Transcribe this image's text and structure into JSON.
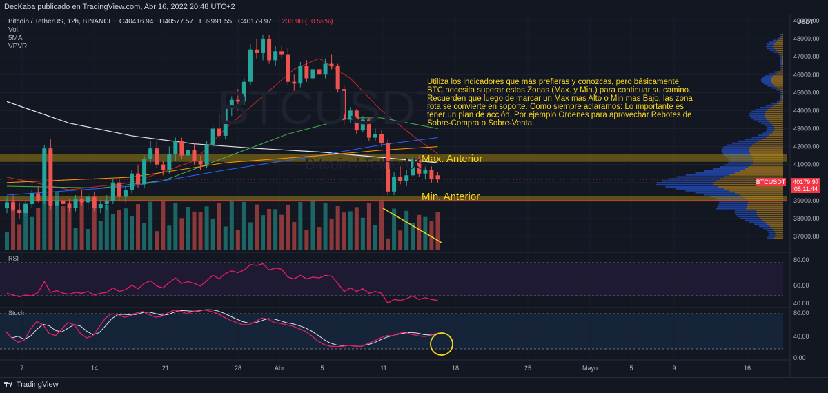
{
  "header": {
    "publisher": "DecKaba publicado en TradingView.com, Abr 16, 2022 20:48 UTC+2"
  },
  "legend": {
    "symbol": "Bitcoin / TetherUS, 12h, BINANCE",
    "open": "O40416.94",
    "high": "H40577.57",
    "low": "L39991.55",
    "close": "C40179.97",
    "change": "−236.98 (−0.59%)",
    "rows": [
      "Vol.",
      "5MA",
      "VPVR"
    ]
  },
  "annotation": "Utiliza los indicadores que más prefieras y conozcas, pero básicamente BTC necesita superar estas Zonas (Max. y Min.) para continuar su camino. Recuerden que luego de marcar un Max mas Alto o Min mas Bajo, las zona rota se convierte en soporte. Como siempre aclaramos: Lo importante es tener un plan de acción. Por ejemplo Ordenes para aprovechar Rebotes de Sobre-Compra o Sobre-Venta.",
  "levels": {
    "max": "Max. Anterior",
    "min": "Min. Anterior"
  },
  "watermark": {
    "ticker": "BTCUSDT",
    "name": "Bitcoin / TetherUS"
  },
  "price_tag": {
    "symbol": "BTCUSDT",
    "price": "40179.97",
    "timer": "05:11:44"
  },
  "panels": {
    "rsi": "RSI",
    "stoch": "Stoch"
  },
  "footer": {
    "brand": "TradingView"
  },
  "colors": {
    "bg": "#131722",
    "up": "#26a69a",
    "down": "#ef5350",
    "zone": "#b59410",
    "annot": "#f7d51d",
    "vpvr_up": "#2962ff",
    "vpvr_down": "#d89a22"
  },
  "chart_data": {
    "type": "candlestick",
    "currency": "USDT",
    "y_ticks": [
      "49000.00",
      "48000.00",
      "47000.00",
      "46000.00",
      "45000.00",
      "44000.00",
      "43000.00",
      "42000.00",
      "41000.00",
      "40000.00",
      "39000.00",
      "38000.00",
      "37000.00"
    ],
    "x_ticks": [
      "7",
      "14",
      "21",
      "28",
      "Abr",
      "5",
      "11",
      "18",
      "25",
      "Mayo",
      "5",
      "9",
      "16"
    ],
    "rsi_ticks": [
      "80.00",
      "60.00",
      "40.00"
    ],
    "stoch_ticks": [
      "80.00",
      "40.00",
      "0.00"
    ],
    "ylim": [
      36500,
      49500
    ],
    "zones": [
      {
        "name": "Max. Anterior",
        "low": 41150,
        "high": 41600
      },
      {
        "name": "Min. Anterior",
        "low": 38950,
        "high": 39250
      }
    ],
    "candles": [
      [
        38600,
        39200,
        38300,
        38900
      ],
      [
        38900,
        39300,
        38400,
        38500
      ],
      [
        38500,
        38900,
        38000,
        38300
      ],
      [
        38300,
        39000,
        38100,
        38800
      ],
      [
        38800,
        39600,
        38600,
        39400
      ],
      [
        39400,
        39800,
        38900,
        39000
      ],
      [
        39000,
        42100,
        38800,
        41900
      ],
      [
        41900,
        42400,
        38500,
        38700
      ],
      [
        38700,
        39300,
        38200,
        39000
      ],
      [
        39000,
        39500,
        38600,
        38800
      ],
      [
        38800,
        39100,
        38400,
        38600
      ],
      [
        38600,
        39300,
        38400,
        39100
      ],
      [
        39100,
        39600,
        38700,
        38900
      ],
      [
        38900,
        39400,
        38500,
        39200
      ],
      [
        39200,
        39500,
        38400,
        38600
      ],
      [
        38600,
        39000,
        38300,
        38800
      ],
      [
        38800,
        39300,
        38500,
        39000
      ],
      [
        39000,
        40200,
        38800,
        40000
      ],
      [
        40000,
        40300,
        39000,
        39200
      ],
      [
        39200,
        39800,
        38900,
        39600
      ],
      [
        39600,
        40700,
        39400,
        40500
      ],
      [
        40500,
        41000,
        39700,
        39900
      ],
      [
        39900,
        41500,
        39700,
        41300
      ],
      [
        41300,
        42300,
        41100,
        41900
      ],
      [
        41900,
        42300,
        40800,
        41000
      ],
      [
        41000,
        41200,
        40400,
        40700
      ],
      [
        40700,
        42000,
        40500,
        41600
      ],
      [
        41600,
        42500,
        41200,
        42300
      ],
      [
        42300,
        42500,
        41300,
        41500
      ],
      [
        41500,
        42100,
        41200,
        41800
      ],
      [
        41800,
        42200,
        41000,
        41200
      ],
      [
        41200,
        41500,
        40700,
        41000
      ],
      [
        41000,
        42300,
        40800,
        42100
      ],
      [
        42100,
        43200,
        41900,
        43000
      ],
      [
        43000,
        43800,
        42400,
        42600
      ],
      [
        42600,
        44300,
        42400,
        44100
      ],
      [
        44100,
        44800,
        43700,
        44600
      ],
      [
        44600,
        45200,
        44000,
        44500
      ],
      [
        44500,
        45800,
        44300,
        45600
      ],
      [
        45600,
        47700,
        45400,
        47400
      ],
      [
        47400,
        48000,
        46900,
        47200
      ],
      [
        47200,
        48200,
        46800,
        48000
      ],
      [
        48000,
        48200,
        46600,
        46800
      ],
      [
        46800,
        47600,
        46500,
        47300
      ],
      [
        47300,
        47600,
        46900,
        47100
      ],
      [
        47100,
        47500,
        45400,
        45600
      ],
      [
        45600,
        46000,
        44900,
        45500
      ],
      [
        45500,
        46700,
        45300,
        46500
      ],
      [
        46500,
        46800,
        45600,
        45800
      ],
      [
        45800,
        46600,
        45600,
        46300
      ],
      [
        46300,
        46600,
        45700,
        46000
      ],
      [
        46000,
        46900,
        45800,
        46600
      ],
      [
        46600,
        47100,
        46300,
        46500
      ],
      [
        46500,
        46600,
        45000,
        45200
      ],
      [
        45200,
        45400,
        43200,
        43500
      ],
      [
        43500,
        44200,
        43300,
        44000
      ],
      [
        44000,
        44100,
        42700,
        42900
      ],
      [
        42900,
        43700,
        42800,
        43500
      ],
      [
        43500,
        43600,
        42300,
        42500
      ],
      [
        42500,
        43000,
        42300,
        42700
      ],
      [
        42700,
        42900,
        42000,
        42200
      ],
      [
        42200,
        42400,
        39300,
        39500
      ],
      [
        39500,
        40600,
        39300,
        40300
      ],
      [
        40300,
        40900,
        39900,
        40100
      ],
      [
        40100,
        40700,
        39800,
        40400
      ],
      [
        40400,
        41500,
        40300,
        41300
      ],
      [
        41300,
        41500,
        40300,
        40500
      ],
      [
        40500,
        40900,
        40200,
        40700
      ],
      [
        40700,
        40900,
        40000,
        40200
      ],
      [
        40400,
        40600,
        40000,
        40180
      ]
    ],
    "ma_white": [
      [
        0,
        44500
      ],
      [
        20,
        42600
      ],
      [
        40,
        42000
      ],
      [
        60,
        41600
      ],
      [
        69,
        41100
      ]
    ],
    "volume_slope_note": "declining"
  }
}
